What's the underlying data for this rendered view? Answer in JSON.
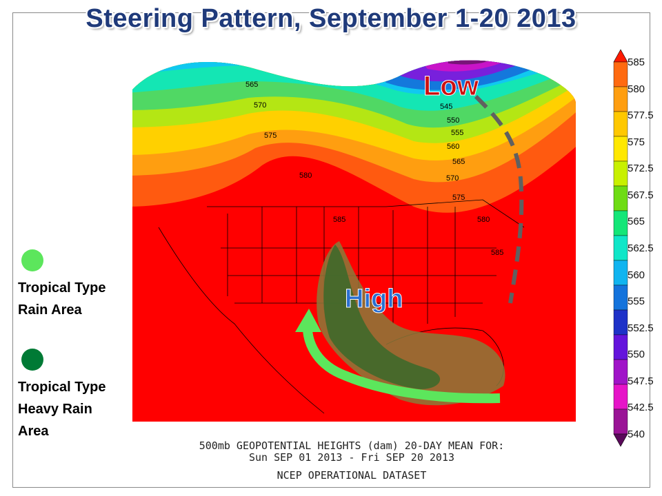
{
  "title": "Steering Pattern, September 1-20 2013",
  "legend": {
    "light_item": {
      "label_line1": "Tropical Type",
      "label_line2": "Rain Area",
      "color": "#5ce65c"
    },
    "dark_item": {
      "label_line1": "Tropical Type",
      "label_line2": "Heavy Rain",
      "label_line3": "Area",
      "color": "#007a35"
    }
  },
  "map": {
    "low_label": "Low",
    "high_label": "High",
    "contour_labels": [
      "565",
      "570",
      "575",
      "580",
      "585",
      "545",
      "550",
      "555",
      "560",
      "565",
      "570",
      "575",
      "580",
      "585"
    ],
    "caption_line1": "500mb GEOPOTENTIAL HEIGHTS (dam)   20-DAY MEAN FOR:",
    "caption_line2": "Sun SEP 01 2013 - Fri SEP 20 2013",
    "caption_line3": "NCEP OPERATIONAL DATASET"
  },
  "colorbar": {
    "labels": [
      "585",
      "580",
      "577.5",
      "575",
      "572.5",
      "567.5",
      "565",
      "562.5",
      "560",
      "555",
      "552.5",
      "550",
      "547.5",
      "542.5",
      "540"
    ],
    "colors": [
      "#ff1a00",
      "#ff6a10",
      "#ff9e10",
      "#ffc800",
      "#ffe800",
      "#c8f000",
      "#6edc14",
      "#14e678",
      "#10e6c8",
      "#10b4f0",
      "#1473dc",
      "#1e32c8",
      "#6414dc",
      "#a014c8",
      "#e614c8",
      "#9a1496",
      "#5a0a5a"
    ]
  }
}
